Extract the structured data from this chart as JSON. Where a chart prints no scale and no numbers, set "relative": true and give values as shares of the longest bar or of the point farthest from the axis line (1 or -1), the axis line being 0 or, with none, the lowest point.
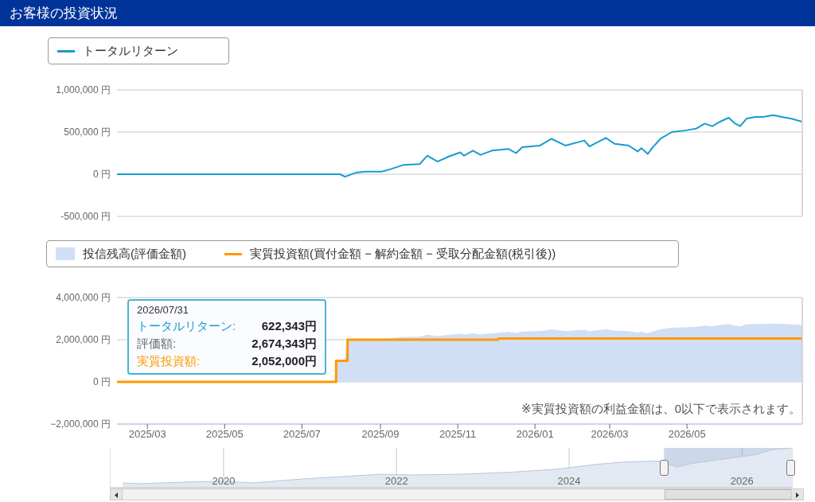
{
  "chart_data": [
    {
      "type": "line",
      "title": "お客様の投資状況",
      "series": [
        {
          "name": "トータルリターン",
          "color": "#1a9bd0",
          "x": [
            "2025-02-05",
            "2025-07-14",
            "2025-07-31",
            "2025-08-04",
            "2025-08-13",
            "2025-08-20",
            "2025-09-02",
            "2025-09-09",
            "2025-09-19",
            "2025-10-02",
            "2025-10-08",
            "2025-10-16",
            "2025-10-25",
            "2025-11-03",
            "2025-11-06",
            "2025-11-13",
            "2025-11-19",
            "2025-11-28",
            "2025-12-11",
            "2025-12-17",
            "2025-12-22",
            "2026-01-05",
            "2026-01-14",
            "2026-01-25",
            "2026-02-09",
            "2026-02-13",
            "2026-02-18",
            "2026-02-26",
            "2026-03-05",
            "2026-03-16",
            "2026-03-23",
            "2026-03-26",
            "2026-03-31",
            "2026-04-04",
            "2026-04-10",
            "2026-04-19",
            "2026-04-30",
            "2026-05-08",
            "2026-05-15",
            "2026-05-21",
            "2026-05-28",
            "2026-06-03",
            "2026-06-08",
            "2026-06-12",
            "2026-06-17",
            "2026-06-24",
            "2026-06-30",
            "2026-07-08",
            "2026-07-15",
            "2026-07-22",
            "2026-07-31"
          ],
          "values": [
            0,
            0,
            0,
            -30000,
            20000,
            30000,
            30000,
            60000,
            110000,
            120000,
            220000,
            150000,
            210000,
            260000,
            220000,
            280000,
            230000,
            280000,
            300000,
            250000,
            320000,
            340000,
            420000,
            340000,
            400000,
            330000,
            370000,
            430000,
            360000,
            340000,
            270000,
            310000,
            240000,
            320000,
            420000,
            500000,
            520000,
            540000,
            600000,
            570000,
            630000,
            670000,
            600000,
            570000,
            660000,
            680000,
            680000,
            700000,
            680000,
            660000,
            622343
          ]
        }
      ],
      "xlim": [
        "2025-02-05",
        "2026-07-31"
      ],
      "ylim": [
        -500000,
        1000000
      ],
      "yticks": [
        {
          "value": -500000,
          "label": "-500,000 円"
        },
        {
          "value": 0,
          "label": "0 円"
        },
        {
          "value": 500000,
          "label": "500,000 円"
        },
        {
          "value": 1000000,
          "label": "1,000,000 円"
        }
      ],
      "grid": "y",
      "legend": "top left",
      "tick_labels": "y",
      "ref_lines": [
        {
          "axis": "x",
          "value": "2026-07-31",
          "color": "#cccccc"
        }
      ]
    },
    {
      "type": "area",
      "series": [
        {
          "name": "投信残高(評価金額)",
          "color": "#d0dff5",
          "x": [
            "2025-02-05",
            "2025-07-27",
            "2025-07-28",
            "2025-08-04",
            "2025-08-06",
            "2025-08-13",
            "2025-08-20",
            "2025-09-02",
            "2025-09-09",
            "2025-09-19",
            "2025-10-02",
            "2025-10-08",
            "2025-10-16",
            "2025-10-25",
            "2025-11-03",
            "2025-11-06",
            "2025-11-13",
            "2025-11-19",
            "2025-11-28",
            "2025-12-11",
            "2025-12-17",
            "2025-12-22",
            "2026-01-05",
            "2026-01-14",
            "2026-01-25",
            "2026-02-09",
            "2026-02-13",
            "2026-02-18",
            "2026-02-26",
            "2026-03-05",
            "2026-03-16",
            "2026-03-23",
            "2026-03-26",
            "2026-03-31",
            "2026-04-04",
            "2026-04-10",
            "2026-04-19",
            "2026-04-30",
            "2026-05-08",
            "2026-05-15",
            "2026-05-21",
            "2026-05-28",
            "2026-06-03",
            "2026-06-08",
            "2026-06-12",
            "2026-06-17",
            "2026-06-24",
            "2026-06-30",
            "2026-07-08",
            "2026-07-15",
            "2026-07-22",
            "2026-07-31"
          ],
          "values": [
            0,
            0,
            1000000,
            970000,
            1990000,
            2020000,
            2030000,
            2030000,
            2060000,
            2110000,
            2120000,
            2220000,
            2150000,
            2210000,
            2260000,
            2220000,
            2280000,
            2230000,
            2280000,
            2350000,
            2300000,
            2370000,
            2390000,
            2470000,
            2390000,
            2450000,
            2380000,
            2420000,
            2480000,
            2410000,
            2390000,
            2320000,
            2360000,
            2290000,
            2370000,
            2470000,
            2550000,
            2570000,
            2590000,
            2650000,
            2620000,
            2680000,
            2720000,
            2650000,
            2620000,
            2710000,
            2730000,
            2730000,
            2750000,
            2730000,
            2710000,
            2674343
          ]
        },
        {
          "name": "実質投資額(買付金額 − 解約金額 − 受取分配金額(税引後))",
          "type": "step",
          "color": "#ff9900",
          "x": [
            "2025-02-05",
            "2025-07-28",
            "2025-08-06",
            "2025-12-03",
            "2026-07-31"
          ],
          "values": [
            0,
            1000000,
            2000000,
            2052000,
            2052000
          ]
        }
      ],
      "xlim": [
        "2025-02-05",
        "2026-07-31"
      ],
      "xticks": [
        {
          "value": "2025-03-01",
          "label": "2025/03"
        },
        {
          "value": "2025-05-01",
          "label": "2025/05"
        },
        {
          "value": "2025-07-01",
          "label": "2025/07"
        },
        {
          "value": "2025-09-01",
          "label": "2025/09"
        },
        {
          "value": "2025-11-01",
          "label": "2025/11"
        },
        {
          "value": "2026-01-01",
          "label": "2026/01"
        },
        {
          "value": "2026-03-01",
          "label": "2026/03"
        },
        {
          "value": "2026-05-01",
          "label": "2026/05"
        }
      ],
      "ylim": [
        -2000000,
        4000000
      ],
      "yticks": [
        {
          "value": -2000000,
          "label": "−2,000,000 円"
        },
        {
          "value": 0,
          "label": "0 円"
        },
        {
          "value": 2000000,
          "label": "2,000,000 円"
        },
        {
          "value": 4000000,
          "label": "4,000,000 円"
        }
      ],
      "grid": "y",
      "legend": "top left",
      "ref_lines": [
        {
          "axis": "x",
          "value": "2026-07-31",
          "color": "#cccccc"
        }
      ],
      "annotations": [
        "2026/07/31",
        "トータルリターン: 622,343円",
        "評価額: 2,674,343円",
        "実質投資額: 2,052,000円",
        "※実質投資額の利益金額は、0以下で表示されます。"
      ]
    },
    {
      "type": "area",
      "relative": true,
      "series": [
        {
          "color": "#e3e9f2",
          "x": [
            "2018-11-01",
            "2019-01-12",
            "2019-09-01",
            "2020-01-01",
            "2020-05-01",
            "2020-12-01",
            "2021-11-01",
            "2022-03-01",
            "2022-10-01",
            "2023-05-01",
            "2023-11-01",
            "2024-05-01",
            "2024-09-01",
            "2025-01-15",
            "2025-04-01",
            "2025-06-01",
            "2025-12-01",
            "2026-03-01",
            "2026-05-01",
            "2026-07-31"
          ],
          "values": [
            0.12,
            0.1,
            0.15,
            0.16,
            0.12,
            0.22,
            0.34,
            0.32,
            0.34,
            0.39,
            0.46,
            0.59,
            0.65,
            0.67,
            0.52,
            0.61,
            0.76,
            0.83,
            0.95,
            1
          ]
        }
      ],
      "xlim": [
        "2018-09-07",
        "2026-07-31"
      ],
      "xticks": [
        {
          "value": "2020-01-01",
          "label": "2020"
        },
        {
          "value": "2022-01-01",
          "label": "2022"
        },
        {
          "value": "2024-01-01",
          "label": "2024"
        },
        {
          "value": "2026-01-01",
          "label": "2026"
        }
      ],
      "grid": "x",
      "tick_labels": "x",
      "bands": [
        {
          "axis": "x",
          "from": "2025-02-05",
          "to": "2026-07-31",
          "color": "#8fa9d0"
        }
      ]
    }
  ]
}
